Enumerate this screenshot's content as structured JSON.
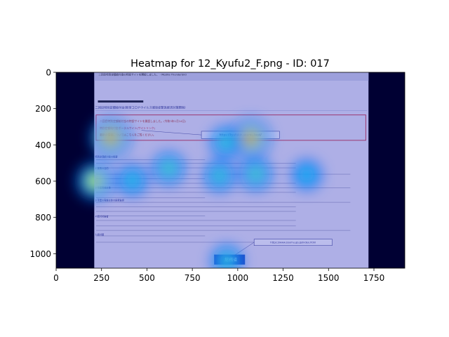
{
  "chart_data": {
    "type": "heatmap",
    "title": "Heatmap for 12_Kyufu2_F.png - ID: 017",
    "xlabel": "",
    "ylabel": "",
    "xlim": [
      0,
      1920
    ],
    "ylim": [
      1080,
      0
    ],
    "xticks": [
      0,
      250,
      500,
      750,
      1000,
      1250,
      1500,
      1750
    ],
    "yticks": [
      0,
      200,
      400,
      600,
      800,
      1000
    ],
    "background_image": {
      "x_range": [
        210,
        1720
      ],
      "y_range": [
        0,
        1080
      ],
      "window_title": "二回目特別定額給付金の特設サイトを開設しました。 - Mozilla Thunderbird",
      "heading": "二回目特別定額給付金(新型コロナウイルス感染症緊急経済対策関係)",
      "box_lines": [
        "二回目特別定額給付金の特設サイトを開設しました。(令和3年1月14日)",
        "特別定額給付金ポータルサイト(サイトリンク)",
        "最新の情報についてはこちらをご覧ください。"
      ],
      "callout_1": "https://kyufukin.soumu.best/",
      "callout_2": "https://www.soumu.go.jp/index.html",
      "logo_text": "総務省",
      "sections": [
        "特別定額給付金の概要",
        "1 施策の目的",
        "2 事業実施主体",
        "3 事業の実施主体の経費負担",
        "4 給付対象者",
        "5 給付額"
      ]
    },
    "hotspots": [
      {
        "x": 300,
        "y": 360,
        "intensity": 1.0
      },
      {
        "x": 1070,
        "y": 365,
        "intensity": 1.0
      },
      {
        "x": 935,
        "y": 385,
        "intensity": 0.55
      },
      {
        "x": 215,
        "y": 600,
        "intensity": 0.85
      },
      {
        "x": 420,
        "y": 595,
        "intensity": 0.5
      },
      {
        "x": 620,
        "y": 530,
        "intensity": 0.6
      },
      {
        "x": 900,
        "y": 570,
        "intensity": 0.55
      },
      {
        "x": 1100,
        "y": 560,
        "intensity": 0.6
      },
      {
        "x": 1380,
        "y": 565,
        "intensity": 0.45
      },
      {
        "x": 940,
        "y": 1040,
        "intensity": 0.55
      }
    ],
    "colormap": "jet"
  }
}
